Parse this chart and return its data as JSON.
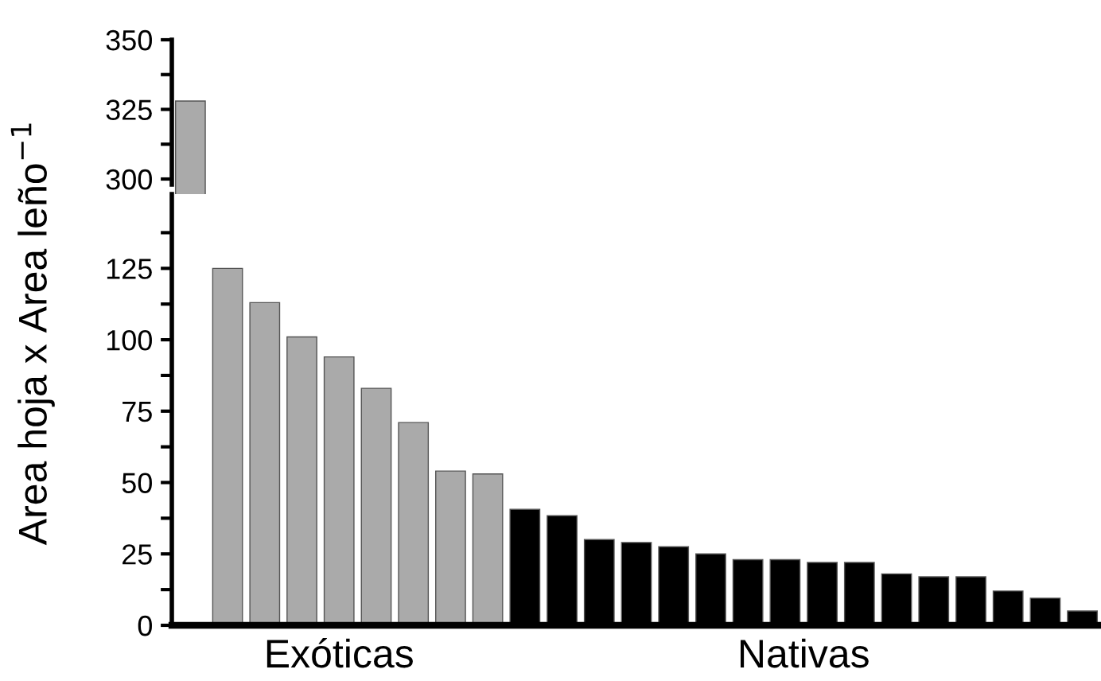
{
  "chart_data": [
    {
      "type": "bar",
      "ylabel": "Area hoja x Area leño$^{−1}$",
      "categories": [
        null
      ],
      "values": [
        328
      ],
      "colors": [
        "#aaaaaa"
      ],
      "ylim": [
        298,
        350
      ],
      "yticks": [
        300,
        {
          "value": 312.5,
          "label": null
        },
        325,
        {
          "value": 337.5,
          "label": null
        },
        350
      ],
      "tick_labels": "y",
      "grid": false,
      "legend": false
    },
    {
      "type": "bar",
      "categories": [
        null,
        null,
        null,
        null,
        null,
        null,
        null,
        null,
        null,
        null,
        null,
        null,
        null,
        null,
        null,
        null,
        null,
        null,
        null,
        null,
        null,
        null,
        null,
        null,
        null
      ],
      "values": [
        null,
        125,
        113,
        101,
        94,
        83,
        71,
        54,
        53,
        40.6,
        38.4,
        30,
        29,
        27.5,
        25,
        23,
        23,
        22,
        22,
        18,
        17,
        17,
        12,
        9.5,
        5
      ],
      "colors": [
        "#aaaaaa",
        "#aaaaaa",
        "#aaaaaa",
        "#aaaaaa",
        "#aaaaaa",
        "#aaaaaa",
        "#aaaaaa",
        "#aaaaaa",
        "#aaaaaa",
        "#000000",
        "#000000",
        "#000000",
        "#000000",
        "#000000",
        "#000000",
        "#000000",
        "#000000",
        "#000000",
        "#000000",
        "#000000",
        "#000000",
        "#000000",
        "#000000",
        "#000000",
        "#000000"
      ],
      "ylim": [
        0,
        151
      ],
      "yticks": [
        0,
        {
          "value": 12.5,
          "label": null
        },
        25,
        {
          "value": 37.5,
          "label": null
        },
        50,
        {
          "value": 62.5,
          "label": null
        },
        75,
        {
          "value": 87.5,
          "label": null
        },
        100,
        {
          "value": 112.5,
          "label": null
        },
        125,
        {
          "value": 137.5,
          "label": null
        }
      ],
      "annotations": [
        "Exóticas",
        "Nativas"
      ],
      "tick_labels": "y",
      "grid": false,
      "legend": false
    }
  ]
}
